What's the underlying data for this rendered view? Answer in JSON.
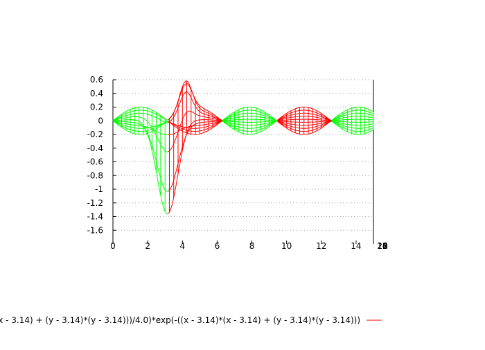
{
  "chart_data": {
    "type": "surface-wireframe",
    "title": "",
    "xlabel": "",
    "ylabel": "",
    "xlim": [
      0,
      15
    ],
    "ylim": [
      -1.8,
      0.6
    ],
    "x_ticks": [
      "0",
      "2",
      "4",
      "6",
      "8",
      "10",
      "12",
      "14"
    ],
    "y_ticks": [
      "0.6",
      "0.4",
      "0.2",
      "0",
      "-0.2",
      "-0.4",
      "-0.6",
      "-0.8",
      "-1",
      "-1.2",
      "-1.4",
      "-1.6"
    ],
    "grid": true,
    "projected_depth_tick_labels": [
      "10",
      "12",
      "14",
      "16",
      "18",
      "20"
    ],
    "legend": {
      "position": "bottom",
      "text": "(x - 3.14) + (y - 3.14)*(y - 3.14)))/4.0)*exp(-((x - 3.14)*(x - 3.14) + (y - 3.14)*(y - 3.14)))",
      "line_color": "#ff0000"
    },
    "series": [
      {
        "name": "(x - 3.14) + (y - 3.14)*(y - 3.14)))/4.0)*exp(-((x - 3.14)*(x - 3.14) + (y - 3.14)*(y - 3.14)))",
        "color_top": "#ff0000",
        "color_bottom": "#00ff00",
        "amplitude": 0.2,
        "bump_center": [
          3.14,
          3.14
        ],
        "bump_min": -1.5,
        "bump_max": 0.45
      }
    ]
  }
}
